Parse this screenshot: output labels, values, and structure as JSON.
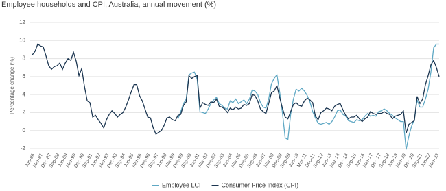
{
  "chart_data": {
    "type": "line",
    "title": "Employee households and CPI, Australia, annual movement (%)",
    "y_label": "Percentage change (%)",
    "categories": [
      "Jun-86",
      null,
      null,
      "Mar-87",
      null,
      null,
      "Dec-87",
      null,
      null,
      "Sep-88",
      null,
      null,
      "Jun-89",
      null,
      null,
      "Mar-90",
      null,
      null,
      "Dec-90",
      null,
      null,
      "Sep-91",
      null,
      null,
      "Jun-92",
      null,
      null,
      "Mar-93",
      null,
      null,
      "Dec-93",
      null,
      null,
      "Sep-94",
      null,
      null,
      "Jun-95",
      null,
      null,
      "Mar-96",
      null,
      null,
      "Dec-96",
      null,
      null,
      "Sep-97",
      null,
      null,
      "Jun-98",
      null,
      null,
      "Mar-99",
      null,
      null,
      "Dec-99",
      null,
      null,
      "Sep-00",
      null,
      null,
      "Jun-01",
      null,
      null,
      "Mar-02",
      null,
      null,
      "Dec-02",
      null,
      null,
      "Sep-03",
      null,
      null,
      "Jun-04",
      null,
      null,
      "Mar-05",
      null,
      null,
      "Dec-05",
      null,
      null,
      "Sep-06",
      null,
      null,
      "Jun-07",
      null,
      null,
      "Mar-08",
      null,
      null,
      "Dec-08",
      null,
      null,
      "Sep-09",
      null,
      null,
      "Jun-10",
      null,
      null,
      "Mar-11",
      null,
      null,
      "Dec-11",
      null,
      null,
      "Sep-12",
      null,
      null,
      "Jun-13",
      null,
      null,
      "Mar-14",
      null,
      null,
      "Dec-14",
      null,
      null,
      "Sep-15",
      null,
      null,
      "Jun-16",
      null,
      null,
      "Mar-17",
      null,
      null,
      "Dec-17",
      null,
      null,
      "Sep-18",
      null,
      null,
      "Jun-19",
      null,
      null,
      "Mar-20",
      null,
      null,
      "Dec-20",
      null,
      null,
      "Sep-21",
      null,
      null,
      "Jun-22",
      null,
      null,
      "Mar-23",
      null
    ],
    "series": [
      {
        "name": "Employee LCI",
        "color": "#5fa8c4",
        "values": [
          null,
          null,
          null,
          null,
          null,
          null,
          null,
          null,
          null,
          null,
          null,
          null,
          null,
          null,
          null,
          null,
          null,
          null,
          null,
          null,
          null,
          null,
          null,
          null,
          null,
          null,
          null,
          null,
          null,
          null,
          null,
          null,
          null,
          null,
          null,
          null,
          null,
          null,
          null,
          null,
          null,
          null,
          null,
          null,
          null,
          null,
          null,
          null,
          null,
          null,
          null,
          null,
          null,
          1.3,
          2.1,
          3.0,
          3.5,
          6.2,
          6.4,
          6.5,
          5.7,
          2.1,
          2.0,
          1.9,
          2.4,
          3.0,
          3.4,
          3.7,
          3.0,
          2.8,
          2.5,
          2.4,
          3.3,
          3.1,
          3.5,
          3.0,
          3.2,
          3.4,
          3.0,
          3.5,
          4.5,
          4.4,
          4.0,
          3.1,
          2.6,
          2.5,
          3.5,
          5.2,
          5.8,
          6.2,
          4.3,
          2.0,
          -0.8,
          -1.0,
          1.8,
          3.5,
          4.6,
          4.4,
          4.7,
          4.4,
          3.9,
          3.2,
          2.1,
          1.4,
          0.8,
          0.7,
          0.8,
          0.9,
          0.7,
          1.0,
          1.5,
          2.2,
          2.3,
          1.8,
          1.6,
          1.1,
          1.0,
          0.9,
          1.2,
          1.1,
          1.2,
          1.6,
          1.9,
          1.6,
          1.7,
          1.6,
          2.1,
          2.2,
          2.4,
          2.2,
          1.9,
          1.7,
          1.4,
          1.2,
          1.0,
          1.0,
          -2.1,
          -0.6,
          0.5,
          1.2,
          3.4,
          2.6,
          2.6,
          3.5,
          4.6,
          6.5,
          9.2,
          9.6,
          9.6
        ]
      },
      {
        "name": "Consumer Price Index (CPI)",
        "color": "#1b3550",
        "values": [
          8.4,
          8.8,
          9.6,
          9.4,
          9.3,
          8.3,
          7.2,
          6.8,
          7.1,
          7.2,
          7.5,
          6.8,
          7.5,
          8.0,
          7.8,
          8.7,
          7.7,
          6.1,
          6.9,
          4.9,
          3.3,
          3.1,
          1.5,
          1.7,
          1.2,
          0.8,
          0.3,
          1.2,
          1.8,
          2.2,
          1.9,
          1.5,
          1.8,
          2.0,
          2.6,
          3.4,
          4.3,
          5.1,
          5.1,
          3.9,
          3.3,
          2.4,
          1.5,
          1.4,
          0.3,
          -0.4,
          -0.2,
          0.0,
          0.6,
          1.4,
          1.5,
          1.2,
          1.1,
          1.7,
          1.8,
          2.8,
          3.2,
          6.1,
          5.8,
          6.0,
          6.1,
          2.5,
          3.1,
          2.9,
          2.8,
          3.2,
          3.1,
          3.5,
          2.7,
          2.6,
          2.4,
          2.0,
          2.5,
          2.3,
          2.6,
          2.4,
          2.5,
          2.9,
          2.8,
          3.0,
          4.0,
          3.9,
          3.3,
          2.4,
          2.1,
          1.9,
          3.0,
          4.2,
          4.4,
          5.0,
          3.7,
          2.5,
          1.5,
          1.3,
          2.1,
          2.9,
          3.1,
          2.8,
          2.7,
          3.3,
          3.6,
          3.4,
          3.1,
          1.6,
          1.2,
          2.0,
          2.2,
          2.5,
          2.4,
          2.2,
          2.7,
          2.9,
          3.0,
          2.3,
          1.7,
          1.3,
          1.5,
          1.5,
          1.7,
          1.3,
          1.0,
          1.3,
          1.5,
          2.1,
          1.9,
          1.8,
          1.9,
          1.9,
          2.1,
          1.9,
          1.8,
          1.3,
          1.6,
          1.7,
          1.8,
          2.2,
          -0.3,
          0.7,
          0.9,
          1.1,
          3.8,
          3.0,
          3.5,
          5.1,
          6.1,
          7.3,
          7.8,
          7.0,
          6.0
        ]
      }
    ],
    "ylim": [
      -2,
      12
    ],
    "yticks": [
      -2,
      0,
      2,
      4,
      6,
      8,
      10,
      12
    ],
    "grid": true,
    "legend": "bottom"
  }
}
